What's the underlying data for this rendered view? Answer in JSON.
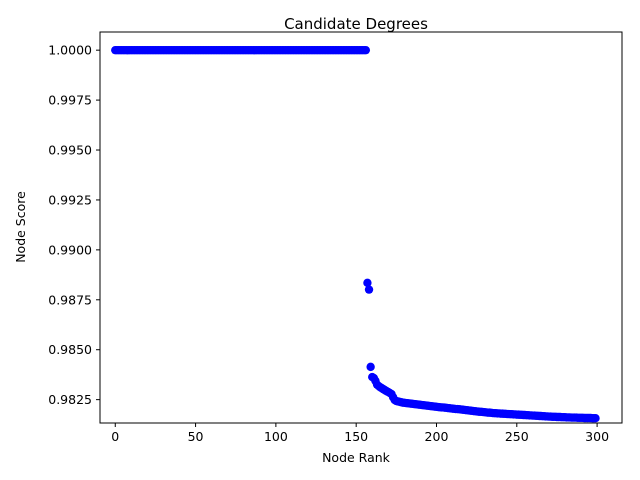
{
  "chart_data": {
    "type": "scatter",
    "title": "Candidate Degrees",
    "xlabel": "Node Rank",
    "ylabel": "Node Score",
    "xlim": [
      -9.5,
      315.5
    ],
    "ylim": [
      0.98133,
      1.00091
    ],
    "xticks": [
      0,
      50,
      100,
      150,
      200,
      250,
      300
    ],
    "yticks": [
      0.9825,
      0.985,
      0.9875,
      0.99,
      0.9925,
      0.995,
      0.9975,
      1.0
    ],
    "ytick_labels": [
      "0.9825",
      "0.9850",
      "0.9875",
      "0.9900",
      "0.9925",
      "0.9950",
      "0.9975",
      "1.0000"
    ],
    "grid": false,
    "marker_color": "#0000ff",
    "series": [
      {
        "plateau": {
          "x_from": 0,
          "x_to": 156,
          "y": 1.0
        },
        "points": [
          [
            157,
            0.98835
          ],
          [
            158,
            0.98801
          ],
          [
            159,
            0.98414
          ],
          [
            160,
            0.98363
          ],
          [
            161,
            0.98358
          ],
          [
            162,
            0.98344
          ],
          [
            163,
            0.98325
          ],
          [
            164,
            0.98318
          ],
          [
            165,
            0.98312
          ],
          [
            166,
            0.98307
          ],
          [
            167,
            0.98302
          ],
          [
            168,
            0.98297
          ],
          [
            169,
            0.98292
          ],
          [
            170,
            0.98288
          ],
          [
            171,
            0.98283
          ],
          [
            172,
            0.98278
          ],
          [
            173,
            0.98262
          ],
          [
            174,
            0.98248
          ],
          [
            175,
            0.98243
          ],
          [
            176,
            0.98241
          ],
          [
            177,
            0.98239
          ],
          [
            178,
            0.98237
          ],
          [
            179,
            0.98235
          ],
          [
            180,
            0.98234
          ],
          [
            181,
            0.98233
          ],
          [
            182,
            0.98232
          ],
          [
            183,
            0.98231
          ],
          [
            184,
            0.9823
          ],
          [
            185,
            0.98229
          ],
          [
            186,
            0.98228
          ],
          [
            187,
            0.98227
          ],
          [
            188,
            0.98226
          ],
          [
            189,
            0.98225
          ],
          [
            190,
            0.98224
          ],
          [
            191,
            0.98223
          ],
          [
            192,
            0.98222
          ],
          [
            193,
            0.98221
          ],
          [
            194,
            0.9822
          ],
          [
            195,
            0.98219
          ],
          [
            196,
            0.98218
          ],
          [
            197,
            0.98217
          ],
          [
            198,
            0.98216
          ],
          [
            199,
            0.98215
          ],
          [
            200,
            0.98214
          ],
          [
            201,
            0.98213
          ],
          [
            202,
            0.98212
          ],
          [
            203,
            0.98211
          ],
          [
            204,
            0.98211
          ],
          [
            205,
            0.9821
          ],
          [
            206,
            0.98209
          ],
          [
            207,
            0.98208
          ],
          [
            208,
            0.98207
          ],
          [
            209,
            0.98206
          ],
          [
            210,
            0.98205
          ],
          [
            211,
            0.98204
          ],
          [
            212,
            0.98203
          ],
          [
            213,
            0.98203
          ],
          [
            214,
            0.98202
          ],
          [
            215,
            0.98201
          ],
          [
            216,
            0.982
          ],
          [
            217,
            0.98199
          ],
          [
            218,
            0.98198
          ],
          [
            219,
            0.98197
          ],
          [
            220,
            0.98196
          ],
          [
            221,
            0.98195
          ],
          [
            222,
            0.98194
          ],
          [
            223,
            0.98193
          ],
          [
            224,
            0.98192
          ],
          [
            225,
            0.98191
          ],
          [
            226,
            0.9819
          ],
          [
            227,
            0.98189
          ],
          [
            228,
            0.98189
          ],
          [
            229,
            0.98188
          ],
          [
            230,
            0.98187
          ],
          [
            231,
            0.98186
          ],
          [
            232,
            0.98185
          ],
          [
            233,
            0.98185
          ],
          [
            234,
            0.98184
          ],
          [
            235,
            0.98183
          ],
          [
            236,
            0.98182
          ],
          [
            237,
            0.98182
          ],
          [
            238,
            0.98181
          ],
          [
            239,
            0.98181
          ],
          [
            240,
            0.9818
          ],
          [
            241,
            0.9818
          ],
          [
            242,
            0.98179
          ],
          [
            243,
            0.98179
          ],
          [
            244,
            0.98178
          ],
          [
            245,
            0.98178
          ],
          [
            246,
            0.98177
          ],
          [
            247,
            0.98177
          ],
          [
            248,
            0.98176
          ],
          [
            249,
            0.98176
          ],
          [
            250,
            0.98175
          ],
          [
            251,
            0.98175
          ],
          [
            252,
            0.98174
          ],
          [
            253,
            0.98174
          ],
          [
            254,
            0.98173
          ],
          [
            255,
            0.98173
          ],
          [
            256,
            0.98172
          ],
          [
            257,
            0.98172
          ],
          [
            258,
            0.98171
          ],
          [
            259,
            0.98171
          ],
          [
            260,
            0.9817
          ],
          [
            261,
            0.9817
          ],
          [
            262,
            0.98169
          ],
          [
            263,
            0.98169
          ],
          [
            264,
            0.98168
          ],
          [
            265,
            0.98168
          ],
          [
            266,
            0.98167
          ],
          [
            267,
            0.98167
          ],
          [
            268,
            0.98166
          ],
          [
            269,
            0.98166
          ],
          [
            270,
            0.98165
          ],
          [
            271,
            0.98165
          ],
          [
            272,
            0.98164
          ],
          [
            273,
            0.98164
          ],
          [
            274,
            0.98164
          ],
          [
            275,
            0.98163
          ],
          [
            276,
            0.98163
          ],
          [
            277,
            0.98163
          ],
          [
            278,
            0.98162
          ],
          [
            279,
            0.98162
          ],
          [
            280,
            0.98162
          ],
          [
            281,
            0.98161
          ],
          [
            282,
            0.98161
          ],
          [
            283,
            0.98161
          ],
          [
            284,
            0.9816
          ],
          [
            285,
            0.9816
          ],
          [
            286,
            0.9816
          ],
          [
            287,
            0.9816
          ],
          [
            288,
            0.98159
          ],
          [
            289,
            0.98159
          ],
          [
            290,
            0.98159
          ],
          [
            291,
            0.98159
          ],
          [
            292,
            0.98158
          ],
          [
            293,
            0.98158
          ],
          [
            294,
            0.98158
          ],
          [
            295,
            0.98158
          ],
          [
            296,
            0.98158
          ],
          [
            297,
            0.98157
          ],
          [
            298,
            0.98157
          ],
          [
            299,
            0.98157
          ]
        ]
      }
    ]
  }
}
